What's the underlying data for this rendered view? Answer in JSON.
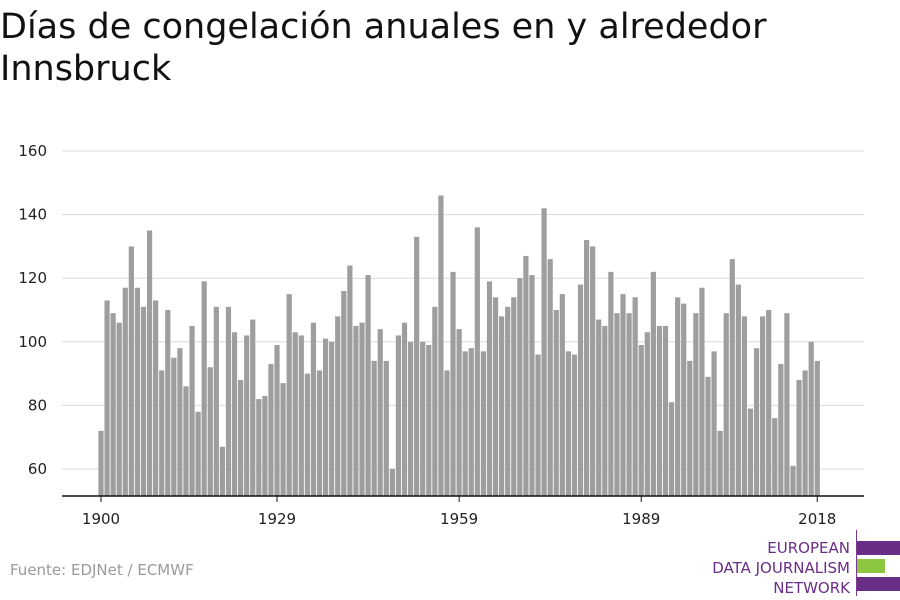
{
  "title": "Días de congelación anuales en y alrededor Innsbruck",
  "source": "Fuente: EDJNet / ECMWF",
  "logo": {
    "lines": [
      "EUROPEAN",
      "DATA JOURNALISM",
      "NETWORK"
    ],
    "colors": {
      "purple": "#6a2d86",
      "green": "#8dc63f"
    }
  },
  "chart_data": {
    "type": "bar",
    "title": "Días de congelación anuales en y alrededor Innsbruck",
    "xlabel": "",
    "ylabel": "",
    "x_start": 1900,
    "x_ticks": [
      1900,
      1929,
      1959,
      1989,
      2018
    ],
    "y_ticks": [
      60,
      80,
      100,
      120,
      140,
      160
    ],
    "ylim": [
      51,
      160
    ],
    "grid": true,
    "bar_color": "#9e9e9e",
    "values": [
      72,
      113,
      109,
      106,
      117,
      130,
      117,
      111,
      135,
      113,
      91,
      110,
      95,
      98,
      86,
      105,
      78,
      119,
      92,
      111,
      67,
      111,
      103,
      88,
      102,
      107,
      82,
      83,
      93,
      99,
      87,
      115,
      103,
      102,
      90,
      106,
      91,
      101,
      100,
      108,
      116,
      124,
      105,
      106,
      121,
      94,
      104,
      94,
      60,
      102,
      106,
      100,
      133,
      100,
      99,
      111,
      146,
      91,
      122,
      104,
      97,
      98,
      136,
      97,
      119,
      114,
      108,
      111,
      114,
      120,
      127,
      121,
      96,
      142,
      126,
      110,
      115,
      97,
      96,
      118,
      132,
      130,
      107,
      105,
      122,
      109,
      115,
      109,
      114,
      99,
      103,
      122,
      105,
      105,
      81,
      114,
      112,
      94,
      109,
      117,
      89,
      97,
      72,
      109,
      126,
      118,
      108,
      79,
      98,
      108,
      110,
      76,
      93,
      109,
      61,
      88,
      91,
      100,
      94
    ]
  }
}
